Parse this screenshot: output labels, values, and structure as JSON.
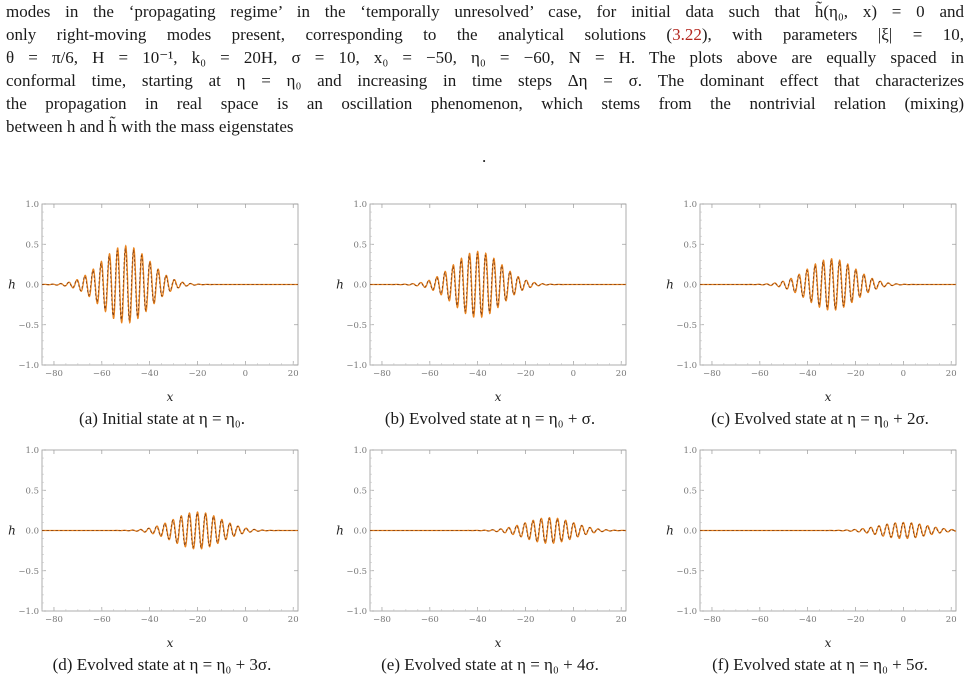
{
  "text": {
    "lines": [
      "modes in the ‘propagating regime’ in the ‘temporally unresolved’ case, for initial data such that h̃(η₀, x) = 0 and",
      "only right-moving modes present, corresponding to the analytical solutions (",
      "θ = π/6, H = 10⁻¹, k₀ = 20H, σ = 10, x₀ = −50, η₀ = −60, N = H. The plots above are equally spaced in",
      "conformal time, starting at η = η₀ and increasing in time steps Δη = σ. The dominant effect that characterizes",
      "the propagation in real space is an oscillation phenomenon, which stems from the nontrivial relation (mixing)",
      "between h and h̃ with the mass eigenstates"
    ],
    "eq_ref": "3.22",
    "line2_tail": "), with parameters |ξ| = 10,",
    "dot": "."
  },
  "colors": {
    "wave_orange": "#e8821e",
    "wave_brown": "#7a3b14",
    "ref": "#b3261e"
  },
  "chart_data": [
    {
      "type": "line",
      "id": "a",
      "caption": "(a) Initial state at η = η₀.",
      "xlabel": "x",
      "ylabel": "h",
      "xlim": [
        -85,
        22
      ],
      "ylim": [
        -1.0,
        1.0
      ],
      "xticks": [
        "−80",
        "−60",
        "−40",
        "−20",
        "0",
        "20"
      ],
      "yticks": [
        "1.0",
        "0.5",
        "0.0",
        "−0.5",
        "−1.0"
      ],
      "envelope_center": -50,
      "envelope_amplitude": 0.48,
      "envelope_width": 10
    },
    {
      "type": "line",
      "id": "b",
      "caption": "(b) Evolved state at η = η₀ + σ.",
      "xlabel": "x",
      "ylabel": "h",
      "xlim": [
        -85,
        22
      ],
      "ylim": [
        -1.0,
        1.0
      ],
      "xticks": [
        "−80",
        "−60",
        "−40",
        "−20",
        "0",
        "20"
      ],
      "yticks": [
        "1.0",
        "0.5",
        "0.0",
        "−0.5",
        "−1.0"
      ],
      "envelope_center": -40,
      "envelope_amplitude": 0.41,
      "envelope_width": 10
    },
    {
      "type": "line",
      "id": "c",
      "caption": "(c) Evolved state at η = η₀ + 2σ.",
      "xlabel": "x",
      "ylabel": "h",
      "xlim": [
        -85,
        22
      ],
      "ylim": [
        -1.0,
        1.0
      ],
      "xticks": [
        "−80",
        "−60",
        "−40",
        "−20",
        "0",
        "20"
      ],
      "yticks": [
        "1.0",
        "0.5",
        "0.0",
        "−0.5",
        "−1.0"
      ],
      "envelope_center": -30,
      "envelope_amplitude": 0.32,
      "envelope_width": 10
    },
    {
      "type": "line",
      "id": "d",
      "caption": "(d) Evolved state at η = η₀ + 3σ.",
      "xlabel": "x",
      "ylabel": "h",
      "xlim": [
        -85,
        22
      ],
      "ylim": [
        -1.0,
        1.0
      ],
      "xticks": [
        "−80",
        "−60",
        "−40",
        "−20",
        "0",
        "20"
      ],
      "yticks": [
        "1.0",
        "0.5",
        "0.0",
        "−0.5",
        "−1.0"
      ],
      "envelope_center": -20,
      "envelope_amplitude": 0.23,
      "envelope_width": 10
    },
    {
      "type": "line",
      "id": "e",
      "caption": "(e) Evolved state at η = η₀ + 4σ.",
      "xlabel": "x",
      "ylabel": "h",
      "xlim": [
        -85,
        22
      ],
      "ylim": [
        -1.0,
        1.0
      ],
      "xticks": [
        "−80",
        "−60",
        "−40",
        "−20",
        "0",
        "20"
      ],
      "yticks": [
        "1.0",
        "0.5",
        "0.0",
        "−0.5",
        "−1.0"
      ],
      "envelope_center": -10,
      "envelope_amplitude": 0.16,
      "envelope_width": 10
    },
    {
      "type": "line",
      "id": "f",
      "caption": "(f) Evolved state at η = η₀ + 5σ.",
      "xlabel": "x",
      "ylabel": "h",
      "xlim": [
        -85,
        22
      ],
      "ylim": [
        -1.0,
        1.0
      ],
      "xticks": [
        "−80",
        "−60",
        "−40",
        "−20",
        "0",
        "20"
      ],
      "yticks": [
        "1.0",
        "0.5",
        "0.0",
        "−0.5",
        "−1.0"
      ],
      "envelope_center": 0,
      "envelope_amplitude": 0.1,
      "envelope_width": 10
    }
  ]
}
